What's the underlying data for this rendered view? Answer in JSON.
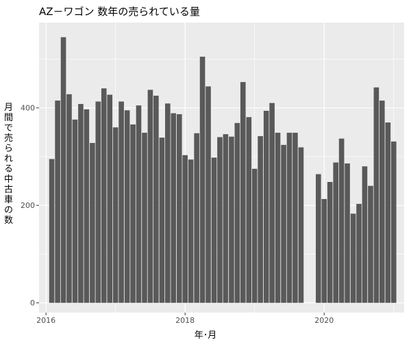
{
  "chart_data": {
    "type": "bar",
    "title": "AZ－ワゴン 数年の売られている量",
    "xlabel": "年･月",
    "ylabel": "月間で売られる中古車 の数",
    "x_range": [
      2015.9,
      2021.15
    ],
    "ylim": [
      -20,
      575
    ],
    "x_ticks": [
      2016,
      2018,
      2020
    ],
    "y_ticks": [
      0,
      200,
      400
    ],
    "grid": true,
    "bar_color": "#595959",
    "panel_color": "#ebebeb",
    "values": [
      {
        "x": 2016.083,
        "y": 295
      },
      {
        "x": 2016.167,
        "y": 415
      },
      {
        "x": 2016.25,
        "y": 545
      },
      {
        "x": 2016.333,
        "y": 428
      },
      {
        "x": 2016.417,
        "y": 376
      },
      {
        "x": 2016.5,
        "y": 408
      },
      {
        "x": 2016.583,
        "y": 397
      },
      {
        "x": 2016.667,
        "y": 328
      },
      {
        "x": 2016.75,
        "y": 413
      },
      {
        "x": 2016.833,
        "y": 440
      },
      {
        "x": 2016.917,
        "y": 427
      },
      {
        "x": 2017.0,
        "y": 360
      },
      {
        "x": 2017.083,
        "y": 413
      },
      {
        "x": 2017.167,
        "y": 395
      },
      {
        "x": 2017.25,
        "y": 366
      },
      {
        "x": 2017.333,
        "y": 405
      },
      {
        "x": 2017.417,
        "y": 349
      },
      {
        "x": 2017.5,
        "y": 437
      },
      {
        "x": 2017.583,
        "y": 425
      },
      {
        "x": 2017.667,
        "y": 339
      },
      {
        "x": 2017.75,
        "y": 409
      },
      {
        "x": 2017.833,
        "y": 389
      },
      {
        "x": 2017.917,
        "y": 387
      },
      {
        "x": 2018.0,
        "y": 303
      },
      {
        "x": 2018.083,
        "y": 294
      },
      {
        "x": 2018.167,
        "y": 348
      },
      {
        "x": 2018.25,
        "y": 505
      },
      {
        "x": 2018.333,
        "y": 444
      },
      {
        "x": 2018.417,
        "y": 298
      },
      {
        "x": 2018.5,
        "y": 340
      },
      {
        "x": 2018.583,
        "y": 346
      },
      {
        "x": 2018.667,
        "y": 341
      },
      {
        "x": 2018.75,
        "y": 369
      },
      {
        "x": 2018.833,
        "y": 453
      },
      {
        "x": 2018.917,
        "y": 381
      },
      {
        "x": 2019.0,
        "y": 275
      },
      {
        "x": 2019.083,
        "y": 342
      },
      {
        "x": 2019.167,
        "y": 394
      },
      {
        "x": 2019.25,
        "y": 410
      },
      {
        "x": 2019.333,
        "y": 349
      },
      {
        "x": 2019.417,
        "y": 324
      },
      {
        "x": 2019.5,
        "y": 349
      },
      {
        "x": 2019.583,
        "y": 349
      },
      {
        "x": 2019.667,
        "y": 319
      },
      {
        "x": 2019.917,
        "y": 264
      },
      {
        "x": 2020.0,
        "y": 213
      },
      {
        "x": 2020.083,
        "y": 248
      },
      {
        "x": 2020.167,
        "y": 288
      },
      {
        "x": 2020.25,
        "y": 337
      },
      {
        "x": 2020.333,
        "y": 286
      },
      {
        "x": 2020.417,
        "y": 183
      },
      {
        "x": 2020.5,
        "y": 203
      },
      {
        "x": 2020.583,
        "y": 280
      },
      {
        "x": 2020.667,
        "y": 240
      },
      {
        "x": 2020.75,
        "y": 442
      },
      {
        "x": 2020.833,
        "y": 415
      },
      {
        "x": 2020.917,
        "y": 370
      },
      {
        "x": 2021.0,
        "y": 331
      }
    ]
  }
}
